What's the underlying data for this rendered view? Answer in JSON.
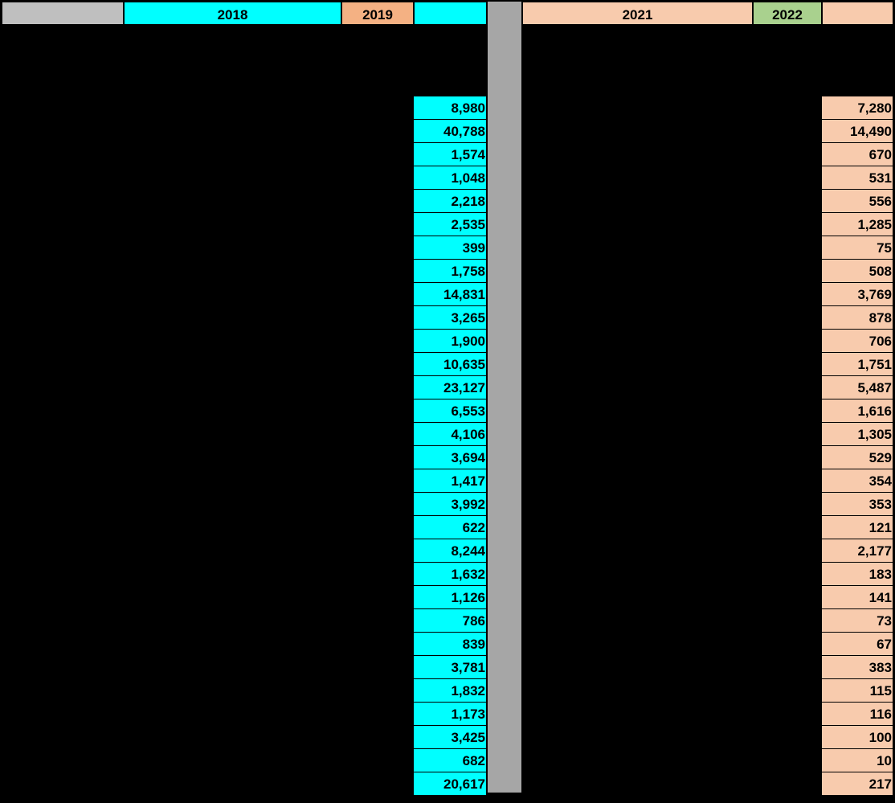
{
  "header": {
    "cells": [
      {
        "label": "",
        "color": "#bfbfbf"
      },
      {
        "label": "2018",
        "color": "#00ffff"
      },
      {
        "label": "2019",
        "color": "#f4b183"
      },
      {
        "label": "",
        "color": "#00ffff"
      },
      {
        "label": "2021",
        "color": "#f8cbad"
      },
      {
        "label": "2022",
        "color": "#a9d18e"
      },
      {
        "label": "",
        "color": "#f8cbad"
      }
    ]
  },
  "table": {
    "left_values": [
      "8,980",
      "40,788",
      "1,574",
      "1,048",
      "2,218",
      "2,535",
      "399",
      "1,758",
      "14,831",
      "3,265",
      "1,900",
      "10,635",
      "23,127",
      "6,553",
      "4,106",
      "3,694",
      "1,417",
      "3,992",
      "622",
      "8,244",
      "1,632",
      "1,126",
      "786",
      "839",
      "3,781",
      "1,832",
      "1,173",
      "3,425",
      "682",
      "20,617"
    ],
    "right_values": [
      "7,280",
      "14,490",
      "670",
      "531",
      "556",
      "1,285",
      "75",
      "508",
      "3,769",
      "878",
      "706",
      "1,751",
      "5,487",
      "1,616",
      "1,305",
      "529",
      "354",
      "353",
      "121",
      "2,177",
      "183",
      "141",
      "73",
      "67",
      "383",
      "115",
      "116",
      "100",
      "10",
      "217"
    ]
  }
}
